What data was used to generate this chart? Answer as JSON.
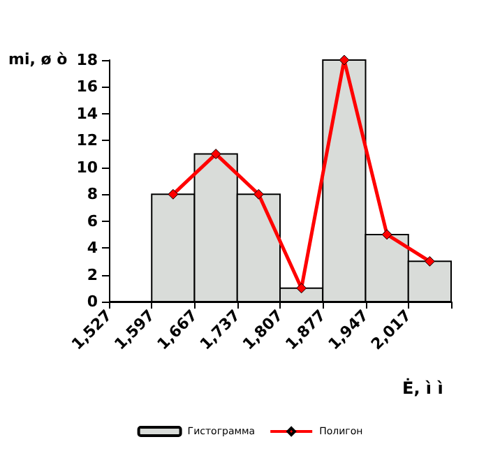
{
  "chart_data": {
    "type": "histogram",
    "ylabel": "mi, ø ò",
    "xlabel": "Ė, ì ì",
    "bins": [
      1527,
      1597,
      1667,
      1737,
      1807,
      1877,
      1947,
      2017,
      2087
    ],
    "series": [
      {
        "name": "Гистограмма",
        "color": "#d9dcd9",
        "values": [
          0,
          8,
          11,
          8,
          1,
          18,
          5,
          3
        ]
      },
      {
        "name": "Полигон",
        "type": "line",
        "color": "#ff0000",
        "marker": "diamond",
        "x": [
          1632,
          1702,
          1772,
          1842,
          1912,
          1982,
          2052
        ],
        "values": [
          8,
          11,
          8,
          1,
          18,
          5,
          3
        ]
      }
    ],
    "xlim": [
      1527,
      2087
    ],
    "xticks": [
      {
        "value": 1527,
        "label": "1,527"
      },
      {
        "value": 1597,
        "label": "1,597"
      },
      {
        "value": 1667,
        "label": "1,667"
      },
      {
        "value": 1737,
        "label": "1,737"
      },
      {
        "value": 1807,
        "label": "1,807"
      },
      {
        "value": 1877,
        "label": "1,877"
      },
      {
        "value": 1947,
        "label": "1,947"
      },
      {
        "value": 2017,
        "label": "2,017"
      },
      {
        "value": 2087,
        "label": null
      }
    ],
    "ylim": [
      0,
      18
    ],
    "yticks": [
      0,
      2,
      4,
      6,
      8,
      10,
      12,
      14,
      16,
      18
    ],
    "grid": false,
    "legend": "bottom"
  }
}
